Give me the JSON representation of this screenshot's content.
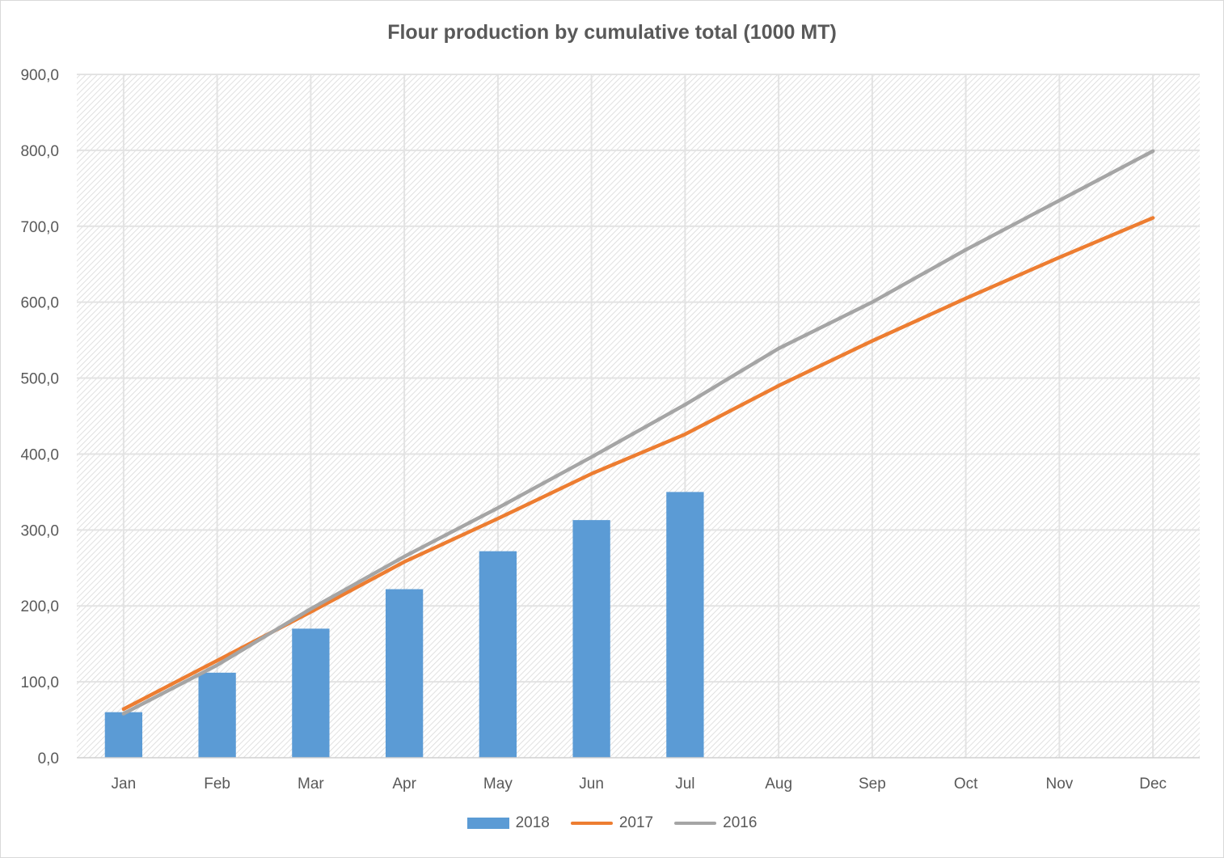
{
  "chart_data": {
    "type": "bar",
    "title": "Flour production by cumulative total (1000 MT)",
    "categories": [
      "Jan",
      "Feb",
      "Mar",
      "Apr",
      "May",
      "Jun",
      "Jul",
      "Aug",
      "Sep",
      "Oct",
      "Nov",
      "Dec"
    ],
    "ylim": [
      0,
      900
    ],
    "yticks": [
      0,
      100,
      200,
      300,
      400,
      500,
      600,
      700,
      800,
      900
    ],
    "ytick_labels": [
      "0,0",
      "100,0",
      "200,0",
      "300,0",
      "400,0",
      "500,0",
      "600,0",
      "700,0",
      "800,0",
      "900,0"
    ],
    "grid": true,
    "legend_position": "bottom",
    "series": [
      {
        "name": "2018",
        "type": "bar",
        "color": "#5b9bd5",
        "values": [
          60,
          112,
          170,
          222,
          272,
          313,
          350,
          null,
          null,
          null,
          null,
          null
        ]
      },
      {
        "name": "2017",
        "type": "line",
        "color": "#ed7d31",
        "values": [
          64,
          128,
          192,
          258,
          315,
          374,
          426,
          490,
          549,
          605,
          659,
          711
        ]
      },
      {
        "name": "2016",
        "type": "line",
        "color": "#a5a5a5",
        "values": [
          58,
          122,
          196,
          265,
          329,
          396,
          465,
          539,
          600,
          669,
          734,
          799
        ]
      }
    ]
  }
}
